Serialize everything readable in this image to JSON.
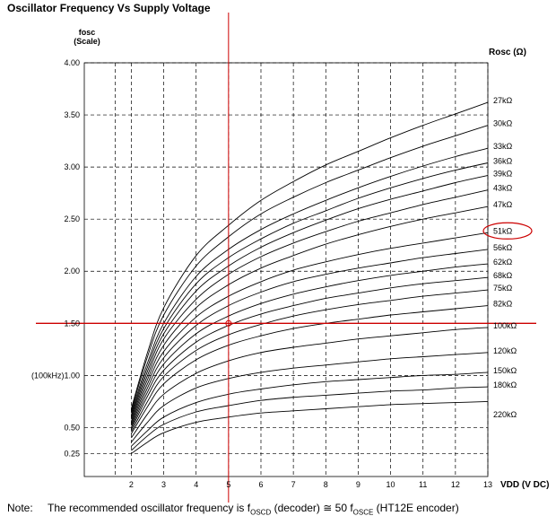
{
  "chart_data": {
    "type": "line",
    "title": "Oscillator Frequency Vs Supply Voltage",
    "ylabel_line1": "fosc",
    "ylabel_line2": "(Scale)",
    "xlabel": "VDD (V DC)",
    "legend_title": "Rosc (Ω)",
    "xlim": [
      0.55,
      13
    ],
    "ylim": [
      0.03,
      4.0
    ],
    "x_ticks": [
      2,
      3,
      4,
      5,
      6,
      7,
      8,
      9,
      10,
      11,
      12,
      13
    ],
    "y_ticks": [
      {
        "value": 0.25,
        "label": "0.25"
      },
      {
        "value": 0.5,
        "label": "0.50"
      },
      {
        "value": 1.0,
        "label": "(100kHz)1.00"
      },
      {
        "value": 1.5,
        "label": "1.50"
      },
      {
        "value": 2.0,
        "label": "2.00"
      },
      {
        "value": 2.5,
        "label": "2.50"
      },
      {
        "value": 3.0,
        "label": "3.00"
      },
      {
        "value": 3.5,
        "label": "3.50"
      },
      {
        "value": 4.0,
        "label": "4.00"
      }
    ],
    "grid": true,
    "x_grid_lines": [
      1.5,
      2,
      3,
      4,
      5,
      6,
      7,
      8,
      9,
      10,
      11,
      12,
      13
    ],
    "reference_lines": {
      "x": 5,
      "y": 1.5,
      "color": "#cc0000"
    },
    "highlighted_series": "51kΩ",
    "highlight_color": "#cc0000",
    "series_x": [
      2,
      2.5,
      3,
      4,
      5,
      6,
      7,
      8,
      9,
      10,
      11,
      12,
      13
    ],
    "series": [
      {
        "name": "27kΩ",
        "values": [
          0.68,
          1.22,
          1.65,
          2.15,
          2.44,
          2.68,
          2.86,
          3.02,
          3.15,
          3.28,
          3.4,
          3.51,
          3.62
        ]
      },
      {
        "name": "30kΩ",
        "values": [
          0.66,
          1.18,
          1.58,
          2.05,
          2.33,
          2.55,
          2.71,
          2.85,
          2.97,
          3.09,
          3.2,
          3.3,
          3.4
        ]
      },
      {
        "name": "33kΩ",
        "values": [
          0.64,
          1.12,
          1.5,
          1.95,
          2.21,
          2.4,
          2.55,
          2.68,
          2.8,
          2.91,
          3.01,
          3.1,
          3.18
        ]
      },
      {
        "name": "36kΩ",
        "values": [
          0.62,
          1.08,
          1.45,
          1.88,
          2.13,
          2.31,
          2.46,
          2.58,
          2.7,
          2.8,
          2.89,
          2.97,
          3.04
        ]
      },
      {
        "name": "39kΩ",
        "values": [
          0.6,
          1.04,
          1.4,
          1.81,
          2.05,
          2.23,
          2.37,
          2.49,
          2.6,
          2.69,
          2.77,
          2.85,
          2.92
        ]
      },
      {
        "name": "43kΩ",
        "values": [
          0.58,
          1.0,
          1.35,
          1.73,
          1.97,
          2.14,
          2.27,
          2.38,
          2.48,
          2.56,
          2.64,
          2.71,
          2.78
        ]
      },
      {
        "name": "47kΩ",
        "values": [
          0.56,
          0.96,
          1.29,
          1.65,
          1.87,
          2.03,
          2.15,
          2.26,
          2.35,
          2.43,
          2.5,
          2.56,
          2.62
        ]
      },
      {
        "name": "51kΩ",
        "values": [
          0.54,
          0.92,
          1.23,
          1.56,
          1.76,
          1.9,
          2.01,
          2.09,
          2.16,
          2.22,
          2.27,
          2.32,
          2.37
        ]
      },
      {
        "name": "56kΩ",
        "values": [
          0.52,
          0.88,
          1.17,
          1.48,
          1.67,
          1.8,
          1.9,
          1.97,
          2.03,
          2.08,
          2.13,
          2.17,
          2.21
        ]
      },
      {
        "name": "62kΩ",
        "values": [
          0.5,
          0.84,
          1.11,
          1.4,
          1.57,
          1.69,
          1.78,
          1.85,
          1.91,
          1.96,
          2.0,
          2.04,
          2.07
        ]
      },
      {
        "name": "68kΩ",
        "values": [
          0.48,
          0.8,
          1.05,
          1.32,
          1.48,
          1.59,
          1.67,
          1.74,
          1.79,
          1.84,
          1.88,
          1.91,
          1.94
        ]
      },
      {
        "name": "75kΩ",
        "values": [
          0.46,
          0.75,
          0.99,
          1.24,
          1.39,
          1.49,
          1.57,
          1.63,
          1.68,
          1.72,
          1.76,
          1.79,
          1.82
        ]
      },
      {
        "name": "82kΩ",
        "values": [
          0.44,
          0.7,
          0.92,
          1.15,
          1.29,
          1.38,
          1.45,
          1.5,
          1.54,
          1.58,
          1.61,
          1.64,
          1.67
        ]
      },
      {
        "name": "100kΩ",
        "values": [
          0.4,
          0.63,
          0.82,
          1.02,
          1.14,
          1.22,
          1.27,
          1.31,
          1.35,
          1.38,
          1.41,
          1.44,
          1.46
        ]
      },
      {
        "name": "120kΩ",
        "values": [
          0.36,
          0.55,
          0.71,
          0.88,
          0.97,
          1.03,
          1.07,
          1.1,
          1.13,
          1.16,
          1.18,
          1.2,
          1.22
        ]
      },
      {
        "name": "150kΩ",
        "values": [
          0.32,
          0.47,
          0.6,
          0.74,
          0.82,
          0.87,
          0.91,
          0.94,
          0.96,
          0.98,
          1.0,
          1.01,
          1.03
        ]
      },
      {
        "name": "180kΩ",
        "values": [
          0.28,
          0.42,
          0.53,
          0.65,
          0.71,
          0.76,
          0.79,
          0.81,
          0.83,
          0.85,
          0.86,
          0.88,
          0.89
        ]
      },
      {
        "name": "220kΩ",
        "values": [
          0.25,
          0.36,
          0.45,
          0.55,
          0.6,
          0.64,
          0.66,
          0.68,
          0.7,
          0.72,
          0.73,
          0.74,
          0.75
        ]
      }
    ]
  },
  "note": {
    "label": "Note:",
    "text": "The recommended oscillator frequency is fₒₛᴄᴅ (decoder) ≅ 50 fₒₛᴄᴇ (HT12E encoder)",
    "part1": "The recommended oscillator frequency is f",
    "sub1": "OSCD",
    "part2": " (decoder) ≅ 50 f",
    "sub2": "OSCE",
    "part3": " (HT12E encoder)"
  }
}
